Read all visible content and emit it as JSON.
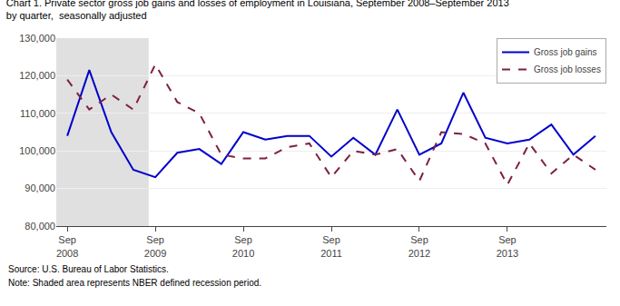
{
  "chart_data": {
    "type": "line",
    "title": "Chart 1. Private sector gross job gains and losses of employment in Louisiana, September 2008–September 2013",
    "subtitle": "by quarter,  seasonally adjusted",
    "annotations": [
      "Source: U.S. Bureau of Labor Statistics.",
      "Note: Shaded area represents NBER defined recession period."
    ],
    "categories": [
      "Sep\n2008",
      null,
      null,
      null,
      "Sep\n2009",
      null,
      null,
      null,
      "Sep\n2010",
      null,
      null,
      null,
      "Sep\n2011",
      null,
      null,
      null,
      "Sep\n2012",
      null,
      null,
      null,
      "Sep\n2013",
      null,
      null,
      null,
      null
    ],
    "series": [
      {
        "name": "Gross job gains",
        "color": "#0000cc",
        "line_style": "solid",
        "values": [
          104000,
          121500,
          105000,
          95000,
          93000,
          99500,
          100500,
          96500,
          105000,
          103000,
          104000,
          104000,
          98500,
          103500,
          99000,
          111000,
          99000,
          102000,
          115500,
          103500,
          102000,
          103000,
          107000,
          99000,
          104000
        ]
      },
      {
        "name": "Gross job losses",
        "color": "#7f2044",
        "line_style": "dash",
        "values": [
          119000,
          111000,
          115000,
          111000,
          123000,
          113000,
          110000,
          99000,
          98000,
          98000,
          101000,
          102000,
          93000,
          100000,
          99000,
          100500,
          92000,
          105000,
          104500,
          102000,
          91000,
          102000,
          94000,
          99000,
          95000
        ]
      }
    ],
    "xlim": [
      -0.5,
      24.5
    ],
    "shade": {
      "start": -0.5,
      "end": 3.7,
      "color": "#e0e0e0"
    },
    "ylim": [
      80000,
      130000
    ],
    "yticks": [
      {
        "value": 80000,
        "label": "80,000"
      },
      {
        "value": 90000,
        "label": "90,000"
      },
      {
        "value": 100000,
        "label": "100,000"
      },
      {
        "value": 110000,
        "label": "110,000"
      },
      {
        "value": 120000,
        "label": "120,000"
      },
      {
        "value": 130000,
        "label": "130,000"
      }
    ],
    "grid": true,
    "legend": "upper right"
  }
}
